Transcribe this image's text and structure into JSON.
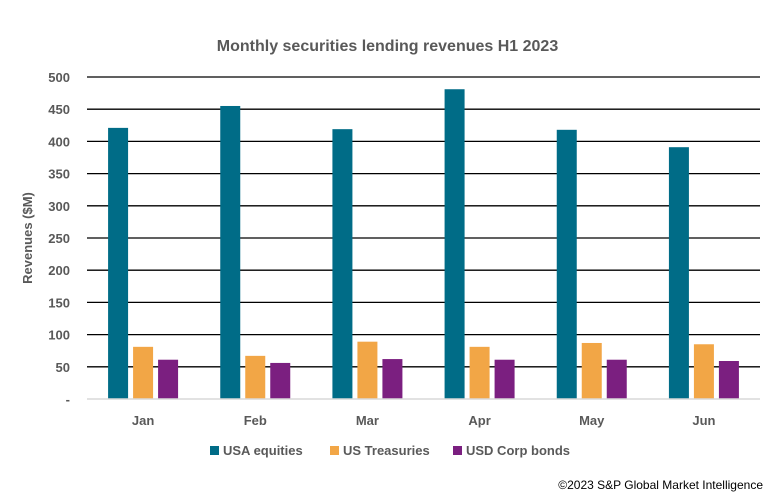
{
  "chart_data": {
    "type": "bar",
    "title": "Monthly securities lending revenues H1 2023",
    "xlabel": "",
    "ylabel": "Revenues ($M)",
    "ylim": [
      0,
      500
    ],
    "yticks": [
      0,
      50,
      100,
      150,
      200,
      250,
      300,
      350,
      400,
      450,
      500
    ],
    "ytick_labels": [
      "-",
      "50",
      "100",
      "150",
      "200",
      "250",
      "300",
      "350",
      "400",
      "450",
      "500"
    ],
    "grid": true,
    "legend": "bottom",
    "categories": [
      "Jan",
      "Feb",
      "Mar",
      "Apr",
      "May",
      "Jun"
    ],
    "series": [
      {
        "name": "USA equities",
        "color": "#006c87",
        "values": [
          421,
          455,
          419,
          481,
          418,
          391
        ]
      },
      {
        "name": "US Treasuries",
        "color": "#f2a646",
        "values": [
          81,
          67,
          89,
          81,
          87,
          85
        ]
      },
      {
        "name": "USD Corp bonds",
        "color": "#7b1f80",
        "values": [
          61,
          56,
          62,
          61,
          61,
          59
        ]
      }
    ]
  },
  "footer": {
    "copyright": "©2023 S&P Global Market Intelligence"
  }
}
